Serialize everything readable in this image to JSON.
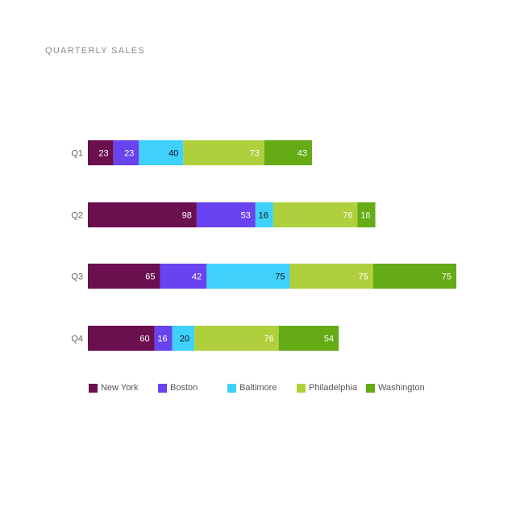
{
  "chart_data": {
    "type": "bar",
    "orientation": "horizontal",
    "stacked": true,
    "title": "QUARTERLY SALES",
    "categories": [
      "Q1",
      "Q2",
      "Q3",
      "Q4"
    ],
    "series": [
      {
        "name": "New York",
        "color": "#6b0f4f",
        "values": [
          23,
          98,
          65,
          60
        ]
      },
      {
        "name": "Boston",
        "color": "#6a43f0",
        "values": [
          23,
          53,
          42,
          16
        ]
      },
      {
        "name": "Baltimore",
        "color": "#3fd1fb",
        "values": [
          40,
          16,
          75,
          20
        ]
      },
      {
        "name": "Philadelphia",
        "color": "#afcf3c",
        "values": [
          73,
          76,
          75,
          76
        ]
      },
      {
        "name": "Washington",
        "color": "#64ab15",
        "values": [
          43,
          16,
          75,
          54
        ]
      }
    ],
    "data_label_colors": {
      "New York": "#ffffff",
      "Boston": "#ffffff",
      "Baltimore": "#111111",
      "Philadelphia": "#ffffff",
      "Washington": "#ffffff"
    },
    "xlim": [
      0,
      332
    ],
    "grid": false,
    "legend_position": "bottom-left"
  }
}
